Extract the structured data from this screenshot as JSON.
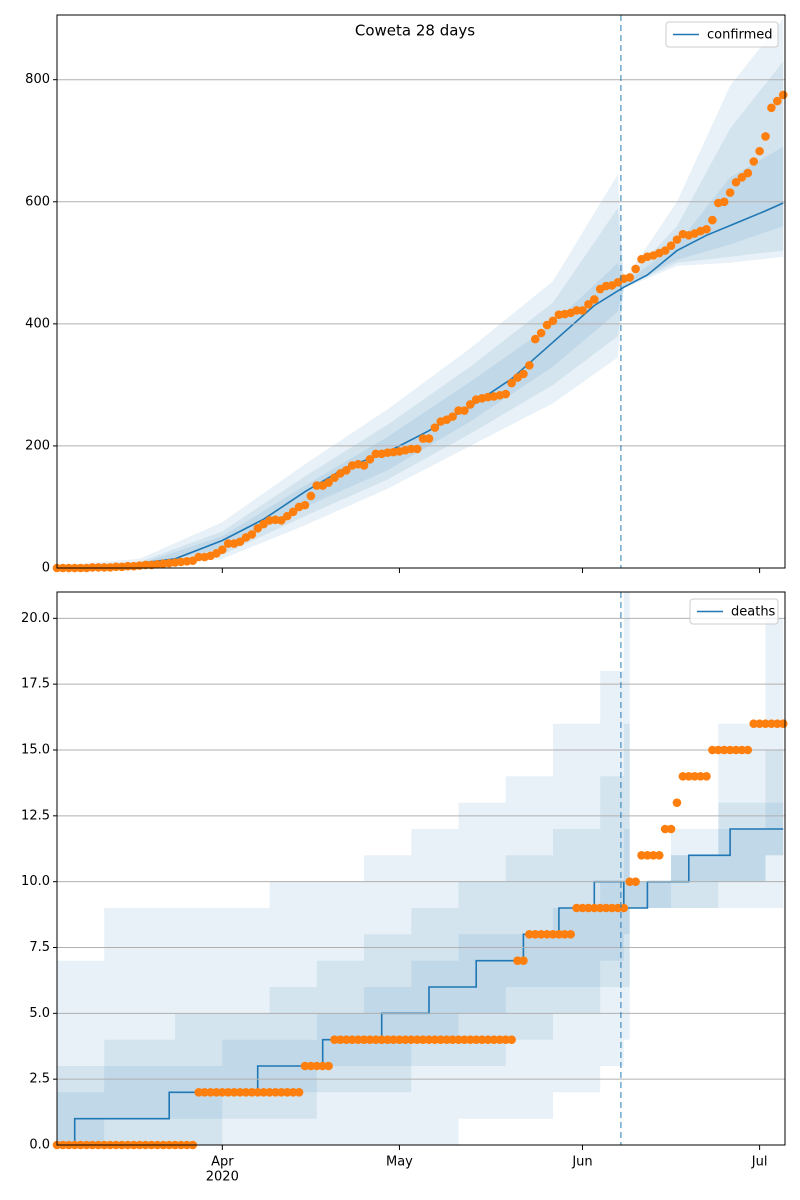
{
  "chart_data": [
    {
      "type": "line",
      "title": "Coweta 28 days",
      "legend_loc": "upper right",
      "grid": true,
      "xlim": [
        0,
        123.3
      ],
      "ylim": [
        0,
        906
      ],
      "yticks": [
        0,
        200,
        400,
        600,
        800
      ],
      "x": [
        0,
        1,
        2,
        3,
        4,
        5,
        6,
        7,
        8,
        9,
        10,
        11,
        12,
        13,
        14,
        15,
        16,
        17,
        18,
        19,
        20,
        21,
        22,
        23,
        24,
        25,
        26,
        27,
        28,
        29,
        30,
        31,
        32,
        33,
        34,
        35,
        36,
        37,
        38,
        39,
        40,
        41,
        42,
        43,
        44,
        45,
        46,
        47,
        48,
        49,
        50,
        51,
        52,
        53,
        54,
        55,
        56,
        57,
        58,
        59,
        60,
        61,
        62,
        63,
        64,
        65,
        66,
        67,
        68,
        69,
        70,
        71,
        72,
        73,
        74,
        75,
        76,
        77,
        78,
        79,
        80,
        81,
        82,
        83,
        84,
        85,
        86,
        87,
        88,
        89,
        90,
        91,
        92,
        93,
        94,
        95,
        96,
        97,
        98,
        99,
        100,
        101,
        102,
        103,
        104,
        105,
        106,
        107,
        108,
        109,
        110,
        111,
        112,
        113,
        114,
        115,
        116,
        117,
        118,
        119,
        120,
        121,
        122,
        123
      ],
      "observed": {
        "color": "#ff7f0e",
        "values": [
          0,
          0,
          0,
          0,
          0,
          0,
          1,
          1,
          1,
          1,
          2,
          2,
          3,
          3,
          4,
          5,
          5,
          6,
          7,
          8,
          9,
          10,
          11,
          12,
          18,
          18,
          20,
          24,
          30,
          40,
          40,
          43,
          50,
          55,
          65,
          72,
          78,
          79,
          78,
          85,
          92,
          100,
          103,
          118,
          135,
          135,
          140,
          148,
          155,
          160,
          168,
          170,
          168,
          178,
          187,
          187,
          189,
          190,
          191,
          193,
          195,
          195,
          212,
          212,
          230,
          240,
          243,
          248,
          258,
          258,
          268,
          276,
          278,
          280,
          281,
          283,
          285,
          303,
          312,
          318,
          332,
          375,
          385,
          398,
          405,
          415,
          416,
          418,
          422,
          422,
          432,
          440,
          457,
          462,
          463,
          468,
          474,
          476,
          490,
          506,
          510,
          512,
          516,
          520,
          528,
          538,
          547,
          545,
          548,
          552,
          555,
          570,
          598,
          600,
          615,
          632,
          640,
          647,
          666,
          683,
          707,
          754,
          765,
          775
        ]
      },
      "series": [
        {
          "name": "confirmed",
          "color": "#1f77b4",
          "drawstyle": "linear",
          "x": [
            0,
            10,
            20,
            28,
            35,
            42,
            49,
            56,
            63,
            70,
            77,
            84,
            91,
            96,
            100,
            105,
            110,
            115,
            120,
            123
          ],
          "values": [
            0,
            3,
            15,
            45,
            80,
            125,
            165,
            190,
            225,
            265,
            310,
            370,
            430,
            460,
            480,
            520,
            545,
            565,
            585,
            598
          ]
        }
      ],
      "bands": {
        "color": "#1f77b4",
        "opacity": 0.1,
        "drawstyle": "linear",
        "x": [
          0,
          14,
          28,
          42,
          56,
          70,
          84,
          95,
          96,
          105,
          114,
          123
        ],
        "ranges": [
          {
            "upper": [
              4,
              15,
              75,
              170,
              260,
              360,
              470,
              645,
              470,
              600,
              790,
              900
            ],
            "lower": [
              0,
              1,
              15,
              70,
              130,
              200,
              270,
              345,
              458,
              495,
              500,
              510
            ]
          },
          {
            "upper": [
              3,
              10,
              60,
              150,
              235,
              330,
              435,
              590,
              468,
              560,
              720,
              830
            ],
            "lower": [
              0,
              2,
              22,
              85,
              145,
              220,
              300,
              380,
              460,
              500,
              510,
              520
            ]
          },
          {
            "upper": [
              2,
              7,
              52,
              135,
              215,
              305,
              400,
              500,
              466,
              530,
              640,
              690
            ],
            "lower": [
              0,
              3,
              32,
              100,
              160,
              240,
              330,
              420,
              462,
              505,
              530,
              560
            ]
          }
        ]
      },
      "vline": {
        "x": 95.5,
        "color": "#1f77b4"
      }
    },
    {
      "type": "line",
      "legend_loc": "upper right",
      "grid": true,
      "xlim": [
        0,
        123.3
      ],
      "ylim": [
        0,
        21
      ],
      "yticks": [
        {
          "value": 0,
          "label": "0.0"
        },
        {
          "value": 2.5,
          "label": "2.5"
        },
        {
          "value": 5,
          "label": "5.0"
        },
        {
          "value": 7.5,
          "label": "7.5"
        },
        {
          "value": 10,
          "label": "10.0"
        },
        {
          "value": 12.5,
          "label": "12.5"
        },
        {
          "value": 15,
          "label": "15.0"
        },
        {
          "value": 17.5,
          "label": "17.5"
        },
        {
          "value": 20,
          "label": "20.0"
        }
      ],
      "xticks": [
        {
          "value": 28,
          "label": "Apr"
        },
        {
          "value": 58,
          "label": "May"
        },
        {
          "value": 89,
          "label": "Jun"
        },
        {
          "value": 119,
          "label": "Jul"
        }
      ],
      "x_sublabel": "2020",
      "x": [
        0,
        1,
        2,
        3,
        4,
        5,
        6,
        7,
        8,
        9,
        10,
        11,
        12,
        13,
        14,
        15,
        16,
        17,
        18,
        19,
        20,
        21,
        22,
        23,
        24,
        25,
        26,
        27,
        28,
        29,
        30,
        31,
        32,
        33,
        34,
        35,
        36,
        37,
        38,
        39,
        40,
        41,
        42,
        43,
        44,
        45,
        46,
        47,
        48,
        49,
        50,
        51,
        52,
        53,
        54,
        55,
        56,
        57,
        58,
        59,
        60,
        61,
        62,
        63,
        64,
        65,
        66,
        67,
        68,
        69,
        70,
        71,
        72,
        73,
        74,
        75,
        76,
        77,
        78,
        79,
        80,
        81,
        82,
        83,
        84,
        85,
        86,
        87,
        88,
        89,
        90,
        91,
        92,
        93,
        94,
        95,
        96,
        97,
        98,
        99,
        100,
        101,
        102,
        103,
        104,
        105,
        106,
        107,
        108,
        109,
        110,
        111,
        112,
        113,
        114,
        115,
        116,
        117,
        118,
        119,
        120,
        121,
        122,
        123
      ],
      "observed": {
        "color": "#ff7f0e",
        "values": [
          0,
          0,
          0,
          0,
          0,
          0,
          0,
          0,
          0,
          0,
          0,
          0,
          0,
          0,
          0,
          0,
          0,
          0,
          0,
          0,
          0,
          0,
          0,
          0,
          2,
          2,
          2,
          2,
          2,
          2,
          2,
          2,
          2,
          2,
          2,
          2,
          2,
          2,
          2,
          2,
          2,
          2,
          3,
          3,
          3,
          3,
          3,
          4,
          4,
          4,
          4,
          4,
          4,
          4,
          4,
          4,
          4,
          4,
          4,
          4,
          4,
          4,
          4,
          4,
          4,
          4,
          4,
          4,
          4,
          4,
          4,
          4,
          4,
          4,
          4,
          4,
          4,
          4,
          7,
          7,
          8,
          8,
          8,
          8,
          8,
          8,
          8,
          8,
          9,
          9,
          9,
          9,
          9,
          9,
          9,
          9,
          9,
          10,
          10,
          11,
          11,
          11,
          11,
          12,
          12,
          13,
          14,
          14,
          14,
          14,
          14,
          15,
          15,
          15,
          15,
          15,
          15,
          15,
          16,
          16,
          16,
          16,
          16,
          16
        ]
      },
      "series": [
        {
          "name": "deaths",
          "color": "#1f77b4",
          "drawstyle": "steps-post",
          "x": [
            0,
            3,
            19,
            34,
            45,
            55,
            63,
            71,
            79,
            85,
            91,
            96,
            100,
            107,
            114,
            123
          ],
          "values": [
            0,
            1,
            2,
            3,
            4,
            5,
            6,
            7,
            8,
            9,
            10,
            9,
            10,
            11,
            12,
            12
          ]
        }
      ],
      "bands": {
        "color": "#1f77b4",
        "opacity": 0.1,
        "drawstyle": "steps-post",
        "x": [
          0,
          8,
          20,
          28,
          36,
          44,
          52,
          60,
          68,
          76,
          84,
          92,
          96,
          97,
          104,
          112,
          120,
          123
        ],
        "ranges": [
          {
            "upper": [
              7,
              9,
              9,
              9,
              10,
              10,
              11,
              12,
              13,
              14,
              16,
              18,
              21,
              10,
              12,
              16,
              20,
              21
            ],
            "lower": [
              0,
              0,
              0,
              0,
              0,
              0,
              0,
              0,
              1,
              1,
              2,
              3,
              4,
              9,
              9,
              9,
              9,
              9
            ]
          },
          {
            "upper": [
              3,
              4,
              5,
              5,
              6,
              7,
              8,
              9,
              10,
              11,
              12,
              14,
              16,
              10,
              11,
              13,
              15,
              17
            ],
            "lower": [
              0,
              0,
              0,
              1,
              1,
              2,
              2,
              3,
              3,
              4,
              5,
              6,
              6,
              9,
              9,
              10,
              11,
              11
            ]
          },
          {
            "upper": [
              2,
              3,
              3,
              4,
              4,
              5,
              6,
              7,
              8,
              8,
              9,
              10,
              12,
              10,
              11,
              12,
              13,
              14
            ],
            "lower": [
              0,
              1,
              1,
              2,
              2,
              3,
              3,
              4,
              5,
              6,
              6,
              7,
              8,
              9,
              10,
              10,
              11,
              11
            ]
          }
        ]
      },
      "vline": {
        "x": 95.5,
        "color": "#1f77b4"
      }
    }
  ]
}
